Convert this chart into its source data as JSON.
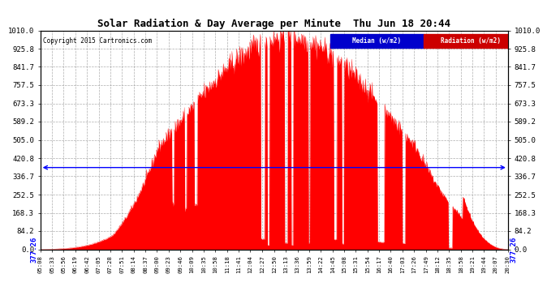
{
  "title": "Solar Radiation & Day Average per Minute  Thu Jun 18 20:44",
  "copyright": "Copyright 2015 Cartronics.com",
  "median_value": 377.26,
  "y_max": 1010.0,
  "y_ticks": [
    0.0,
    84.2,
    168.3,
    252.5,
    336.7,
    420.8,
    505.0,
    589.2,
    673.3,
    757.5,
    841.7,
    925.8,
    1010.0
  ],
  "background_color": "#ffffff",
  "bar_color": "#ff0000",
  "median_line_color": "#0000ff",
  "grid_color": "#aaaaaa",
  "legend_median_color": "#0000cc",
  "legend_radiation_color": "#cc0000",
  "x_labels": [
    "05:08",
    "05:33",
    "05:56",
    "06:19",
    "06:42",
    "07:05",
    "07:28",
    "07:51",
    "08:14",
    "08:37",
    "09:00",
    "09:23",
    "09:46",
    "10:09",
    "10:35",
    "10:58",
    "11:18",
    "11:41",
    "12:04",
    "12:27",
    "12:50",
    "13:13",
    "13:36",
    "13:59",
    "14:22",
    "14:45",
    "15:08",
    "15:31",
    "15:54",
    "16:17",
    "16:40",
    "17:03",
    "17:26",
    "17:49",
    "18:12",
    "18:35",
    "18:58",
    "19:21",
    "19:44",
    "20:07",
    "20:30"
  ]
}
